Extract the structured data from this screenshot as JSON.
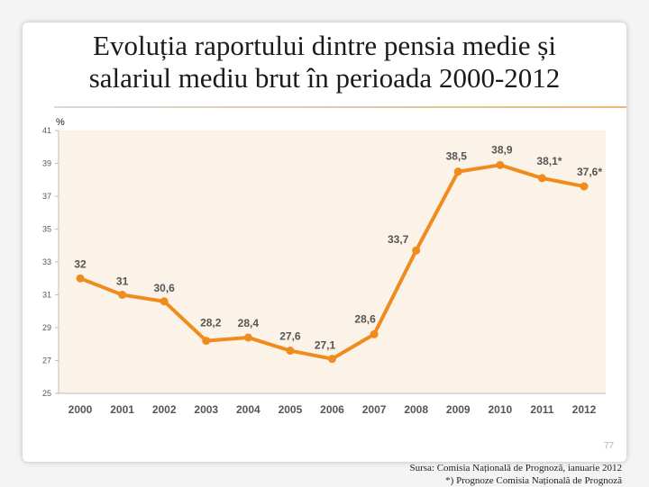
{
  "title_line1": "Evoluția raportului dintre pensia medie și",
  "title_line2": "salariul mediu brut în perioada 2000-2012",
  "page_number": "77",
  "source_line1": "Sursa: Comisia Națională de Prognoză, ianuarie 2012",
  "source_line2": "*) Prognoze Comisia Națională de Prognoză",
  "colors": {
    "line": "#f08c1e",
    "plot_bg": "#fbf2e8",
    "axis_text": "#555555"
  },
  "chart_data": {
    "type": "line",
    "ylabel": "%",
    "ylim": [
      25,
      41
    ],
    "yticks": [
      25,
      27,
      29,
      31,
      33,
      35,
      37,
      39,
      41
    ],
    "categories": [
      "2000",
      "2001",
      "2002",
      "2003",
      "2004",
      "2005",
      "2006",
      "2007",
      "2008",
      "2009",
      "2010",
      "2011",
      "2012"
    ],
    "values": [
      32,
      31,
      30.6,
      28.2,
      28.4,
      27.6,
      27.1,
      28.6,
      33.7,
      38.5,
      38.9,
      38.1,
      37.6
    ],
    "data_labels": [
      "32",
      "31",
      "30,6",
      "28,2",
      "28,4",
      "27,6",
      "27,1",
      "28,6",
      "33,7",
      "38,5",
      "38,9",
      "38,1*",
      "37,6*"
    ],
    "grid": false,
    "legend": "none"
  }
}
